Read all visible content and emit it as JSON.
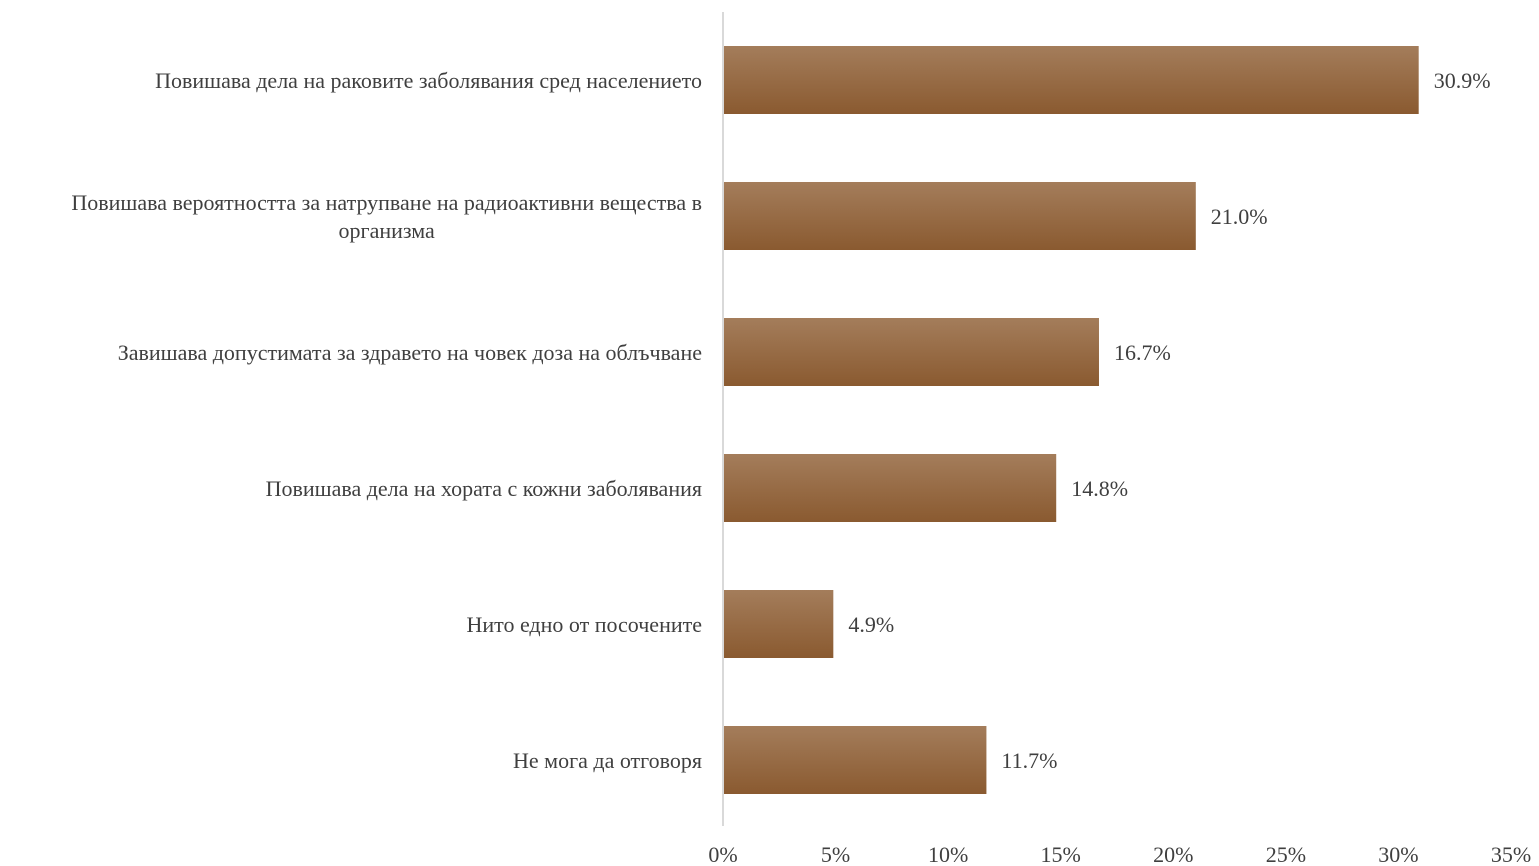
{
  "chart_data": {
    "type": "bar",
    "orientation": "horizontal",
    "categories": [
      "Повишава дела на раковите заболявания сред населението",
      "Повишава вероятността за натрупване на радиоактивни вещества в организма",
      "Завишава допустимата за здравето на човек доза на облъчване",
      "Повишава дела на хората с кожни заболявания",
      "Нито едно от посочените",
      "Не мога да отговоря"
    ],
    "category_lines": [
      [
        "Повишава дела на раковите заболявания сред населението"
      ],
      [
        "Повишава вероятността за натрупване на радиоактивни вещества в",
        "организма"
      ],
      [
        "Завишава допустимата за здравето на човек доза на облъчване"
      ],
      [
        "Повишава дела на хората с кожни заболявания"
      ],
      [
        "Нито едно от посочените"
      ],
      [
        "Не мога да отговоря"
      ]
    ],
    "values": [
      30.9,
      21.0,
      16.7,
      14.8,
      4.9,
      11.7
    ],
    "data_labels": [
      "30.9%",
      "21.0%",
      "16.7%",
      "14.8%",
      "4.9%",
      "11.7%"
    ],
    "xlim": [
      0,
      35
    ],
    "xticks": [
      0,
      5,
      10,
      15,
      20,
      25,
      30,
      35
    ],
    "xtick_labels": [
      "0%",
      "5%",
      "10%",
      "15%",
      "20%",
      "25%",
      "30%",
      "35%"
    ],
    "title": "",
    "xlabel": "",
    "ylabel": "",
    "grid": false,
    "colors": {
      "bar_top": "#a47d5b",
      "bar_bottom": "#8a5a30",
      "axis": "#d9d9d9",
      "text": "#3f3f3f"
    }
  }
}
